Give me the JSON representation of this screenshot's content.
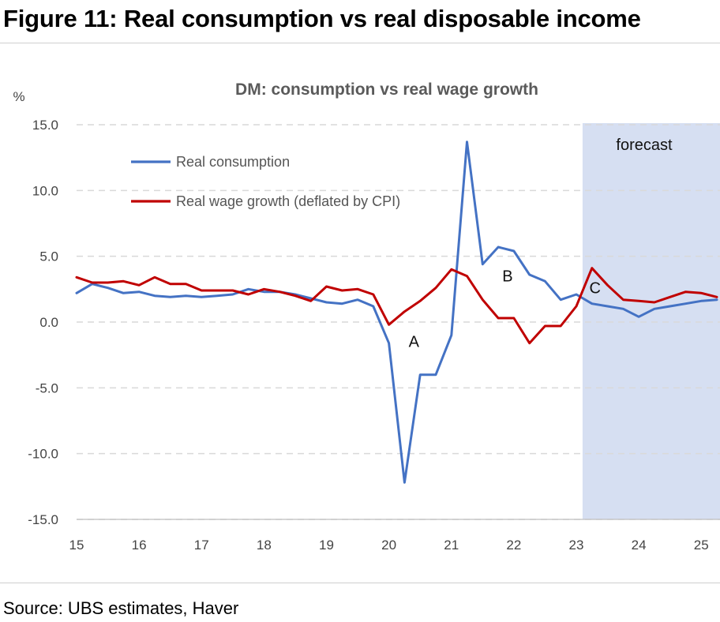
{
  "figure_title": "Figure 11: Real consumption vs real disposable income",
  "source": "Source: UBS estimates, Haver",
  "colors": {
    "consumption": "#4472c4",
    "wage": "#c00000",
    "forecast_band": "#d6dff2",
    "grid": "#d9d9d9"
  },
  "chart_data": {
    "type": "line",
    "title": "DM: consumption vs real wage growth",
    "ylabel": "%",
    "xlabel": "",
    "ylim": [
      -15,
      15
    ],
    "xlim": [
      15,
      25.3
    ],
    "yticks": [
      15,
      10,
      5,
      0,
      -5,
      -10,
      -15
    ],
    "ytick_labels": [
      "15.0",
      "10.0",
      "5.0",
      "0.0",
      "-5.0",
      "-10.0",
      "-15.0"
    ],
    "xticks": [
      15,
      16,
      17,
      18,
      19,
      20,
      21,
      22,
      23,
      24,
      25
    ],
    "xtick_labels": [
      "15",
      "16",
      "17",
      "18",
      "19",
      "20",
      "21",
      "22",
      "23",
      "24",
      "25"
    ],
    "grid": "horizontal dashed",
    "legend_position": "top-left",
    "forecast": {
      "start": 23.1,
      "end": 25.3,
      "label": "forecast"
    },
    "annotations": [
      {
        "text": "A",
        "x": 20.4,
        "y": -1.9
      },
      {
        "text": "B",
        "x": 21.9,
        "y": 3.1
      },
      {
        "text": "C",
        "x": 23.3,
        "y": 2.2
      }
    ],
    "series": [
      {
        "name": "Real consumption",
        "x": [
          15.0,
          15.25,
          15.5,
          15.75,
          16.0,
          16.25,
          16.5,
          16.75,
          17.0,
          17.25,
          17.5,
          17.75,
          18.0,
          18.25,
          18.5,
          18.75,
          19.0,
          19.25,
          19.5,
          19.75,
          20.0,
          20.25,
          20.5,
          20.75,
          21.0,
          21.25,
          21.5,
          21.75,
          22.0,
          22.25,
          22.5,
          22.75,
          23.0,
          23.25,
          23.5,
          23.75,
          24.0,
          24.25,
          24.5,
          24.75,
          25.0,
          25.25
        ],
        "values": [
          2.2,
          2.9,
          2.6,
          2.2,
          2.3,
          2.0,
          1.9,
          2.0,
          1.9,
          2.0,
          2.1,
          2.5,
          2.3,
          2.3,
          2.1,
          1.8,
          1.5,
          1.4,
          1.7,
          1.2,
          -1.6,
          -12.2,
          -4.0,
          -4.0,
          -1.0,
          13.7,
          4.4,
          5.7,
          5.4,
          3.6,
          3.1,
          1.7,
          2.1,
          1.4,
          1.2,
          1.0,
          0.4,
          1.0,
          1.2,
          1.4,
          1.6,
          1.7
        ]
      },
      {
        "name": "Real wage growth (deflated by CPI)",
        "x": [
          15.0,
          15.25,
          15.5,
          15.75,
          16.0,
          16.25,
          16.5,
          16.75,
          17.0,
          17.25,
          17.5,
          17.75,
          18.0,
          18.25,
          18.5,
          18.75,
          19.0,
          19.25,
          19.5,
          19.75,
          20.0,
          20.25,
          20.5,
          20.75,
          21.0,
          21.25,
          21.5,
          21.75,
          22.0,
          22.25,
          22.5,
          22.75,
          23.0,
          23.25,
          23.5,
          23.75,
          24.0,
          24.25,
          24.5,
          24.75,
          25.0,
          25.25
        ],
        "values": [
          3.4,
          3.0,
          3.0,
          3.1,
          2.8,
          3.4,
          2.9,
          2.9,
          2.4,
          2.4,
          2.4,
          2.1,
          2.5,
          2.3,
          2.0,
          1.6,
          2.7,
          2.4,
          2.5,
          2.1,
          -0.2,
          0.8,
          1.6,
          2.6,
          4.0,
          3.5,
          1.7,
          0.3,
          0.3,
          -1.6,
          -0.3,
          -0.3,
          1.2,
          4.1,
          2.8,
          1.7,
          1.6,
          1.5,
          1.9,
          2.3,
          2.2,
          1.9
        ]
      }
    ]
  }
}
